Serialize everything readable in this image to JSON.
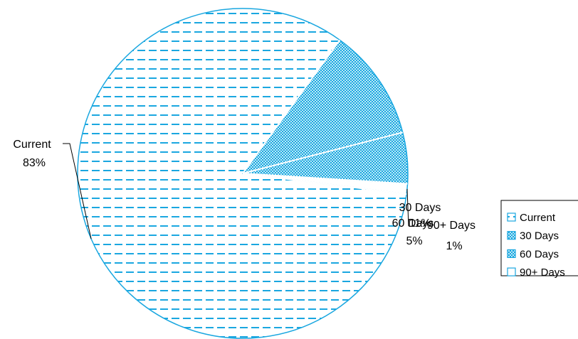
{
  "chart_data": {
    "type": "pie",
    "title": "",
    "categories": [
      "Current",
      "30 Days",
      "60 Days",
      "90+ Days"
    ],
    "values": [
      83,
      11,
      5,
      1
    ],
    "data_labels": [
      {
        "name": "Current",
        "percent": "83%"
      },
      {
        "name": "30 Days",
        "percent": "11%"
      },
      {
        "name": "60 Days",
        "percent": "5%"
      },
      {
        "name": "90+ Days",
        "percent": "1%"
      }
    ],
    "legend": {
      "position": "right",
      "entries": [
        "Current",
        "30 Days",
        "60 Days",
        "90+ Days"
      ]
    },
    "colors": {
      "accent": "#1aa7e0",
      "fill_light": "#bfe9f7",
      "slice_edge": "#ffffff",
      "text": "#000000"
    },
    "patterns": [
      "dashed-horizontal",
      "checker-fine",
      "checker-fine",
      "none"
    ]
  }
}
